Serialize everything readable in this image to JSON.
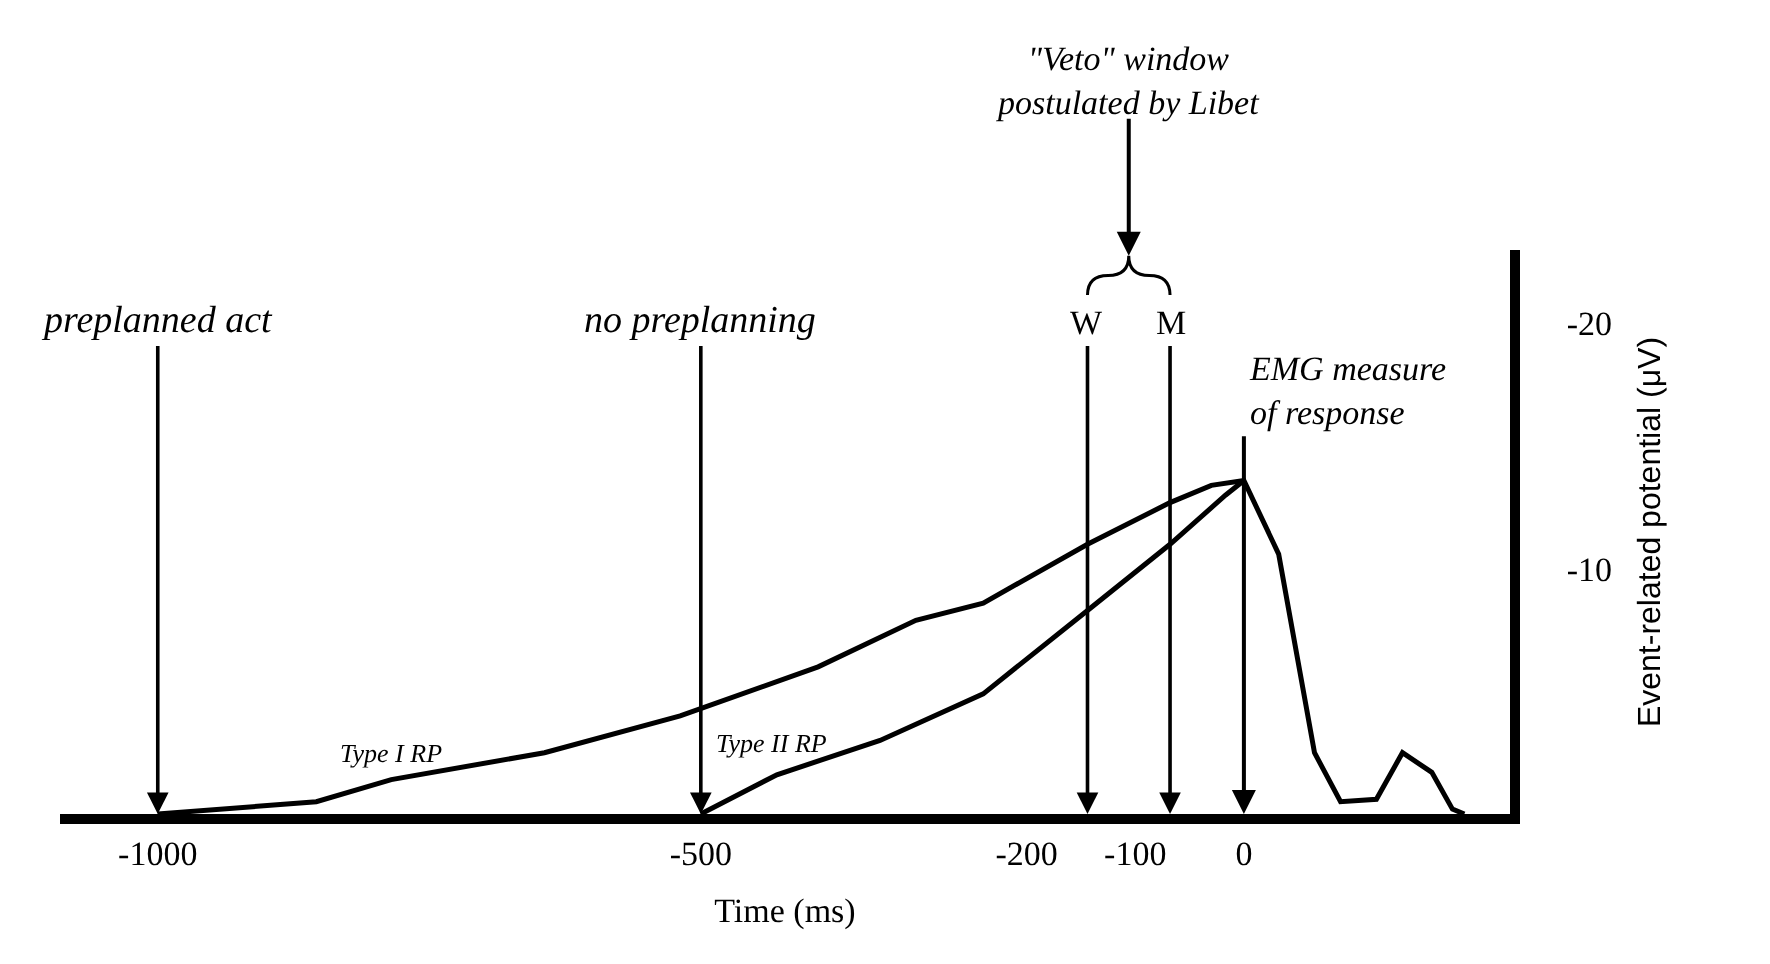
{
  "chart_data": {
    "type": "line",
    "xlabel": "Time (ms)",
    "ylabel": "Event-related potential (μV)",
    "xlim": [
      -1090,
      245
    ],
    "xticks": [
      -1000,
      -500,
      -200,
      -100,
      0
    ],
    "ylim": [
      0,
      -23
    ],
    "yticks": [
      -20,
      -10
    ],
    "legend": false,
    "marker": "none",
    "line_style": "solid",
    "series": [
      {
        "name": "Type I RP",
        "color": "#000000",
        "x": [
          -1000,
          -854,
          -785,
          -644,
          -519,
          -392,
          -302,
          -240,
          -144,
          -68,
          -30,
          0,
          32,
          65,
          89,
          122,
          146,
          173,
          192,
          203
        ],
        "values": [
          0,
          -0.5,
          -1.4,
          -2.5,
          -4.0,
          -6.0,
          -7.9,
          -8.6,
          -11.0,
          -12.7,
          -13.4,
          -13.6,
          -10.6,
          -2.5,
          -0.5,
          -0.6,
          -2.5,
          -1.7,
          -0.2,
          0
        ]
      },
      {
        "name": "Type II RP",
        "color": "#000000",
        "x": [
          -500,
          -430,
          -335,
          -240,
          -144,
          -68,
          -17,
          0
        ],
        "values": [
          0,
          -1.6,
          -3.0,
          -4.9,
          -8.3,
          -11.0,
          -13.0,
          -13.6
        ]
      }
    ],
    "ref_lines": [
      {
        "axis": "x",
        "value": -1000,
        "label": "preplanned act"
      },
      {
        "axis": "x",
        "value": -500,
        "label": "no preplanning"
      },
      {
        "axis": "x",
        "value": -144,
        "label": "W"
      },
      {
        "axis": "x",
        "value": -68,
        "label": "M"
      },
      {
        "axis": "x",
        "value": 0,
        "label": "EMG measure of response"
      }
    ],
    "annotations": [
      "\"Veto\" window postulated by Libet"
    ]
  }
}
